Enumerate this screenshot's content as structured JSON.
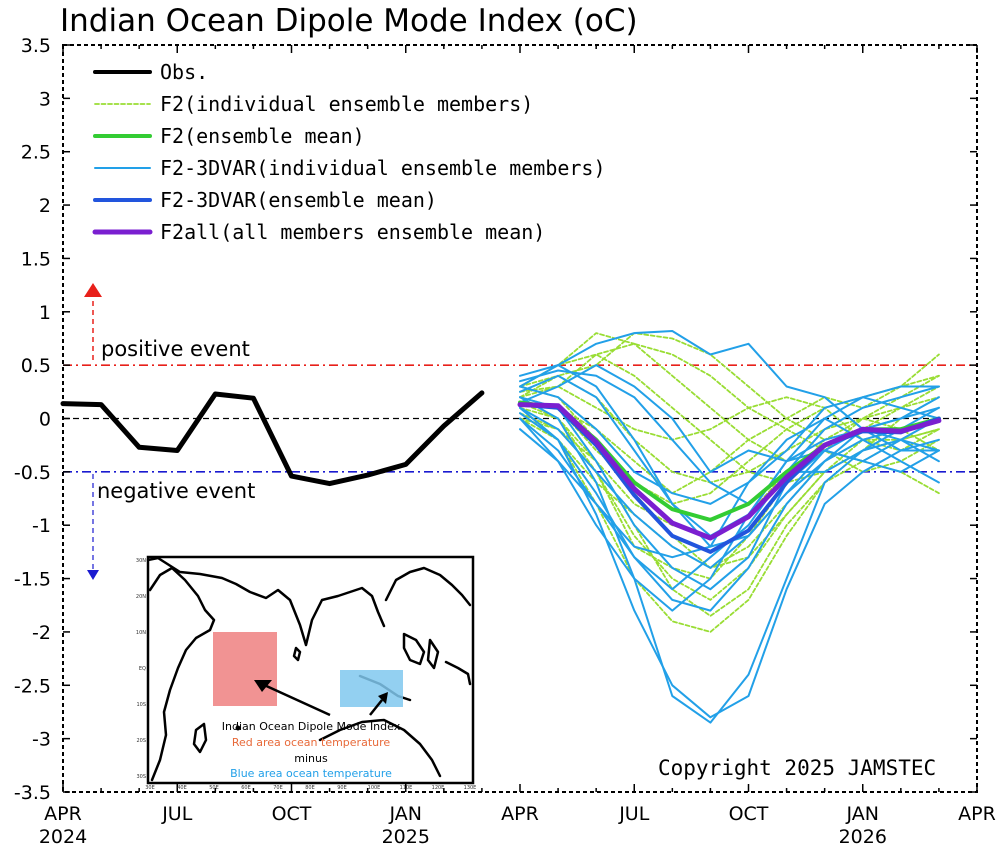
{
  "colors": {
    "obs": "#000000",
    "f2_member": "#99dd33",
    "f2_mean": "#33cc33",
    "f2_3dvar_member": "#22a0e8",
    "f2_3dvar_mean": "#2255dd",
    "f2all_mean": "#7a1fd0",
    "positive_line": "#e8201a",
    "negative_line": "#1a1ad0",
    "red_box": "#ee8080",
    "blue_box": "#80c8ee",
    "red_text": "#e86a3a",
    "blue_text": "#22a0e8"
  },
  "chart_data": {
    "type": "line",
    "title": "Indian Ocean Dipole Mode Index (oC)",
    "ylim": [
      -3.5,
      3.5
    ],
    "y_ticks": [
      {
        "v": 3.5,
        "label": "3.5"
      },
      {
        "v": 3,
        "label": "3"
      },
      {
        "v": 2.5,
        "label": "2.5"
      },
      {
        "v": 2,
        "label": "2"
      },
      {
        "v": 1.5,
        "label": "1.5"
      },
      {
        "v": 1,
        "label": "1"
      },
      {
        "v": 0.5,
        "label": "0.5"
      },
      {
        "v": 0,
        "label": "0"
      },
      {
        "v": -0.5,
        "label": "-0.5"
      },
      {
        "v": -1,
        "label": "-1"
      },
      {
        "v": -1.5,
        "label": "-1.5"
      },
      {
        "v": -2,
        "label": "-2"
      },
      {
        "v": -2.5,
        "label": "-2.5"
      },
      {
        "v": -3,
        "label": "-3"
      },
      {
        "v": -3.5,
        "label": "-3.5"
      }
    ],
    "x_range": [
      "2024-04",
      "2026-04"
    ],
    "x_ticks": [
      {
        "date": "2024-04",
        "label": "APR",
        "year": "2024"
      },
      {
        "date": "2024-07",
        "label": "JUL",
        "year": ""
      },
      {
        "date": "2024-10",
        "label": "OCT",
        "year": ""
      },
      {
        "date": "2025-01",
        "label": "JAN",
        "year": "2025"
      },
      {
        "date": "2025-04",
        "label": "APR",
        "year": ""
      },
      {
        "date": "2025-07",
        "label": "JUL",
        "year": ""
      },
      {
        "date": "2025-10",
        "label": "OCT",
        "year": ""
      },
      {
        "date": "2026-01",
        "label": "JAN",
        "year": "2026"
      },
      {
        "date": "2026-04",
        "label": "APR",
        "year": ""
      }
    ],
    "reference_lines": [
      {
        "name": "positive-threshold",
        "y": 0.5
      },
      {
        "name": "zero-line",
        "y": 0
      },
      {
        "name": "negative-threshold",
        "y": -0.5
      }
    ],
    "legend": {
      "placement": "top-left",
      "entries": [
        {
          "key": "obs",
          "label": "Obs."
        },
        {
          "key": "f2_member",
          "label": "F2(individual ensemble members)"
        },
        {
          "key": "f2_mean",
          "label": "F2(ensemble mean)"
        },
        {
          "key": "f2_3dvar_member",
          "label": "F2-3DVAR(individual ensemble members)"
        },
        {
          "key": "f2_3dvar_mean",
          "label": "F2-3DVAR(ensemble mean)"
        },
        {
          "key": "f2all_mean",
          "label": "F2all(all members ensemble mean)"
        }
      ]
    },
    "annotations": {
      "positive_event": "positive event",
      "negative_event": "negative event",
      "copyright": "Copyright 2025 JAMSTEC"
    },
    "obs": {
      "x": [
        "2024-04",
        "2024-05",
        "2024-06",
        "2024-07",
        "2024-08",
        "2024-09",
        "2024-10",
        "2024-11",
        "2024-12",
        "2025-01",
        "2025-02",
        "2025-03"
      ],
      "y": [
        0.14,
        0.13,
        -0.27,
        -0.3,
        0.23,
        0.19,
        -0.54,
        -0.61,
        -0.53,
        -0.43,
        -0.07,
        0.24
      ]
    },
    "forecast_x": [
      "2025-04",
      "2025-05",
      "2025-06",
      "2025-07",
      "2025-08",
      "2025-09",
      "2025-10",
      "2025-11",
      "2025-12",
      "2026-01",
      "2026-02",
      "2026-03"
    ],
    "f2_members": [
      [
        0.3,
        0.2,
        -0.2,
        -0.7,
        -1.1,
        -1.4,
        -1.3,
        -0.9,
        -0.5,
        -0.2,
        -0.1,
        0.0
      ],
      [
        0.2,
        0.4,
        0.5,
        0.8,
        0.75,
        0.6,
        0.3,
        0.0,
        -0.2,
        -0.1,
        0.1,
        0.3
      ],
      [
        0.1,
        0.0,
        -0.4,
        -1.0,
        -1.6,
        -1.85,
        -1.6,
        -1.0,
        -0.6,
        -0.3,
        -0.2,
        -0.1
      ],
      [
        0.0,
        -0.2,
        -0.8,
        -1.5,
        -1.9,
        -2.0,
        -1.7,
        -1.1,
        -0.6,
        -0.4,
        -0.2,
        0.0
      ],
      [
        0.3,
        0.5,
        0.6,
        0.4,
        0.1,
        -0.2,
        -0.5,
        -0.6,
        -0.5,
        -0.3,
        0.0,
        0.2
      ],
      [
        0.15,
        0.1,
        -0.3,
        -0.6,
        -0.8,
        -0.7,
        -0.4,
        -0.1,
        0.1,
        0.2,
        0.3,
        0.4
      ],
      [
        0.2,
        0.3,
        0.6,
        0.7,
        0.6,
        0.4,
        0.1,
        -0.1,
        -0.3,
        -0.4,
        -0.5,
        -0.7
      ],
      [
        0.0,
        -0.1,
        -0.5,
        -1.2,
        -1.4,
        -1.5,
        -1.1,
        -0.6,
        -0.2,
        0.0,
        0.1,
        0.2
      ],
      [
        0.3,
        0.4,
        0.2,
        -0.2,
        -0.5,
        -0.6,
        -0.5,
        -0.3,
        -0.1,
        0.0,
        -0.1,
        0.0
      ],
      [
        0.1,
        -0.2,
        -0.6,
        -0.9,
        -1.2,
        -1.4,
        -1.2,
        -0.8,
        -0.4,
        -0.2,
        -0.2,
        -0.1
      ],
      [
        0.2,
        0.1,
        -0.1,
        -0.4,
        -0.7,
        -0.5,
        -0.2,
        0.0,
        0.2,
        0.1,
        0.3,
        0.6
      ],
      [
        0.25,
        0.3,
        0.1,
        -0.1,
        -0.2,
        -0.1,
        0.1,
        0.2,
        0.1,
        -0.2,
        -0.3,
        -0.1
      ],
      [
        0.05,
        -0.1,
        -0.4,
        -0.8,
        -1.0,
        -1.1,
        -0.9,
        -0.5,
        -0.3,
        -0.5,
        -0.4,
        -0.2
      ],
      [
        0.3,
        0.5,
        0.8,
        0.7,
        0.4,
        0.1,
        -0.2,
        -0.4,
        -0.3,
        0.0,
        0.2,
        0.4
      ],
      [
        0.15,
        0.0,
        -0.5,
        -1.1,
        -1.5,
        -1.7,
        -1.4,
        -0.9,
        -0.5,
        -0.3,
        -0.1,
        -0.3
      ]
    ],
    "f2_mean": [
      0.15,
      0.1,
      -0.2,
      -0.6,
      -0.85,
      -0.95,
      -0.8,
      -0.5,
      -0.25,
      -0.1,
      -0.1,
      0.0
    ],
    "f2_3dvar_members": [
      [
        0.4,
        0.5,
        0.3,
        -0.2,
        -0.8,
        -1.2,
        -1.1,
        -0.7,
        -0.3,
        -0.1,
        0.0,
        0.1
      ],
      [
        0.2,
        0.0,
        -0.6,
        -1.5,
        -2.6,
        -2.85,
        -2.4,
        -1.5,
        -0.6,
        -0.3,
        -0.2,
        -0.4
      ],
      [
        0.1,
        -0.2,
        -0.9,
        -1.8,
        -2.5,
        -2.8,
        -2.6,
        -1.6,
        -0.8,
        -0.5,
        -0.3,
        -0.3
      ],
      [
        0.3,
        0.5,
        0.7,
        0.8,
        0.82,
        0.6,
        0.7,
        0.3,
        0.2,
        -0.1,
        -0.3,
        -0.2
      ],
      [
        0.0,
        -0.3,
        -0.8,
        -1.3,
        -1.7,
        -1.8,
        -1.4,
        -0.8,
        -0.4,
        -0.1,
        0.0,
        0.2
      ],
      [
        0.25,
        0.4,
        0.2,
        -0.3,
        -0.8,
        -1.1,
        -0.9,
        -0.4,
        0.0,
        0.2,
        0.3,
        0.3
      ],
      [
        -0.1,
        -0.4,
        -0.8,
        -1.2,
        -1.3,
        -1.2,
        -0.6,
        -0.2,
        0.0,
        -0.2,
        -0.4,
        -0.6
      ],
      [
        0.3,
        0.2,
        -0.1,
        -0.5,
        -0.7,
        -0.8,
        -0.6,
        -0.3,
        0.1,
        0.2,
        0.1,
        0.0
      ],
      [
        0.15,
        0.3,
        0.5,
        0.3,
        0.0,
        -0.5,
        -0.3,
        -0.4,
        -0.3,
        -0.4,
        -0.2,
        0.0
      ],
      [
        0.0,
        -0.4,
        -1.0,
        -1.5,
        -1.8,
        -1.5,
        -0.9,
        -0.4,
        -0.2,
        -0.1,
        -0.2,
        -0.3
      ],
      [
        0.2,
        0.1,
        -0.4,
        -1.0,
        -1.4,
        -1.6,
        -1.3,
        -0.6,
        -0.3,
        -0.4,
        -0.5,
        -0.3
      ],
      [
        0.35,
        0.45,
        0.4,
        0.2,
        -0.2,
        -0.6,
        -0.8,
        -0.5,
        -0.1,
        0.1,
        0.2,
        0.3
      ],
      [
        0.1,
        -0.1,
        -0.5,
        -0.9,
        -1.2,
        -1.4,
        -1.1,
        -0.7,
        -0.4,
        -0.2,
        -0.1,
        0.1
      ],
      [
        0.05,
        -0.2,
        -0.7,
        -1.3,
        -1.6,
        -1.3,
        -1.0,
        -0.5,
        -0.5,
        -0.3,
        -0.1,
        0.0
      ]
    ],
    "f2_3dvar_mean": [
      0.13,
      0.1,
      -0.25,
      -0.72,
      -1.1,
      -1.25,
      -1.05,
      -0.6,
      -0.25,
      -0.12,
      -0.13,
      0.0
    ],
    "f2all_mean": [
      0.13,
      0.12,
      -0.22,
      -0.66,
      -0.98,
      -1.12,
      -0.92,
      -0.55,
      -0.25,
      -0.1,
      -0.12,
      -0.02
    ]
  },
  "inset": {
    "caption_title": "Indian Ocean Dipole Mode Index",
    "caption_red": "Red area ocean temperature",
    "caption_minus": "minus",
    "caption_blue": "Blue area ocean temperature",
    "lon_labels": [
      "30E",
      "40E",
      "50E",
      "60E",
      "70E",
      "80E",
      "90E",
      "100E",
      "110E",
      "120E",
      "130E"
    ],
    "lat_labels": [
      "30N",
      "20N",
      "10N",
      "EQ",
      "10S",
      "20S",
      "30S"
    ]
  }
}
